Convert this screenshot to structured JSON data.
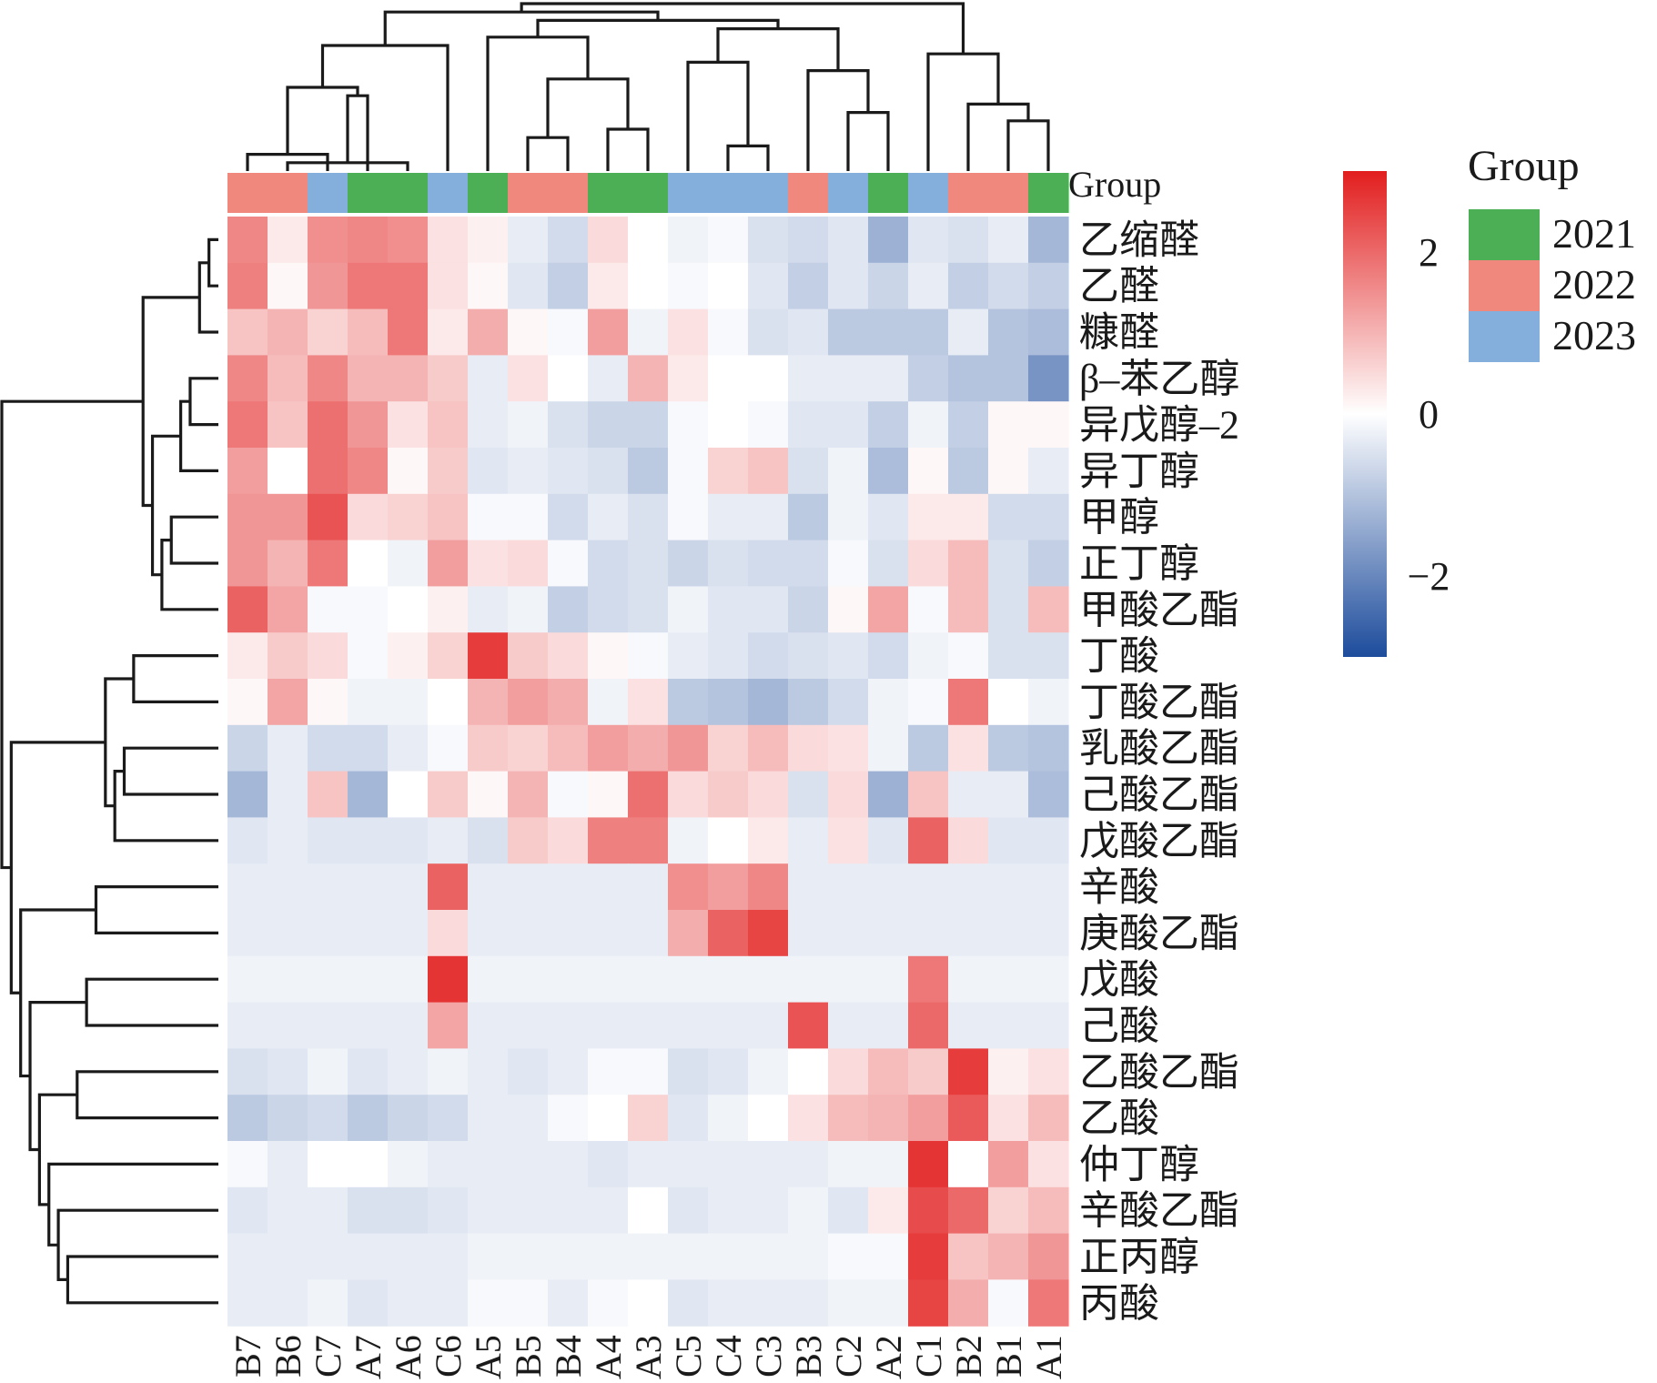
{
  "chart_data": {
    "type": "heatmap",
    "title": "",
    "xlabel": "",
    "ylabel": "",
    "columns": [
      "B7",
      "B6",
      "C7",
      "A7",
      "A6",
      "C6",
      "A5",
      "B5",
      "B4",
      "A4",
      "A3",
      "C5",
      "C4",
      "C3",
      "B3",
      "C2",
      "A2",
      "C1",
      "B2",
      "B1",
      "A1"
    ],
    "column_groups": [
      "2022",
      "2022",
      "2023",
      "2021",
      "2021",
      "2023",
      "2021",
      "2022",
      "2022",
      "2021",
      "2021",
      "2023",
      "2023",
      "2023",
      "2022",
      "2023",
      "2021",
      "2023",
      "2022",
      "2022",
      "2021"
    ],
    "group_annotation_label": "Group",
    "rows": [
      "乙缩醛",
      "乙醛",
      "糠醛",
      "β–苯乙醇",
      "异戊醇–2",
      "异丁醇",
      "甲醇",
      "正丁醇",
      "甲酸乙酯",
      "丁酸",
      "丁酸乙酯",
      "乳酸乙酯",
      "己酸乙酯",
      "戊酸乙酯",
      "辛酸",
      "庚酸乙酯",
      "戊酸",
      "己酸",
      "乙酸乙酯",
      "乙酸",
      "仲丁醇",
      "辛酸乙酯",
      "正丙醇",
      "丙酸"
    ],
    "values": [
      [
        1.6,
        0.3,
        1.5,
        1.6,
        1.5,
        0.4,
        0.2,
        -0.3,
        -0.6,
        0.5,
        0.0,
        -0.2,
        -0.1,
        -0.5,
        -0.6,
        -0.4,
        -1.3,
        -0.4,
        -0.5,
        -0.3,
        -1.2
      ],
      [
        1.7,
        0.1,
        1.4,
        1.8,
        1.8,
        0.4,
        0.1,
        -0.4,
        -0.8,
        0.3,
        0.0,
        -0.1,
        0.0,
        -0.4,
        -0.8,
        -0.4,
        -0.7,
        -0.3,
        -0.8,
        -0.6,
        -0.8
      ],
      [
        0.8,
        1.0,
        0.6,
        0.9,
        1.8,
        0.3,
        1.1,
        0.1,
        -0.1,
        1.3,
        -0.2,
        0.4,
        -0.1,
        -0.5,
        -0.4,
        -0.9,
        -0.9,
        -0.9,
        -0.3,
        -1.0,
        -1.1
      ],
      [
        1.6,
        0.9,
        1.6,
        1.0,
        1.0,
        0.7,
        -0.3,
        0.4,
        0.0,
        -0.3,
        1.0,
        0.3,
        0.0,
        0.0,
        -0.3,
        -0.3,
        -0.3,
        -0.8,
        -1.0,
        -1.0,
        -1.8
      ],
      [
        1.8,
        0.8,
        1.9,
        1.4,
        0.4,
        0.8,
        -0.3,
        -0.2,
        -0.5,
        -0.7,
        -0.7,
        -0.1,
        0.0,
        -0.1,
        -0.4,
        -0.4,
        -0.8,
        -0.2,
        -0.8,
        0.1,
        0.1
      ],
      [
        1.3,
        0.0,
        1.9,
        1.6,
        0.1,
        0.7,
        -0.4,
        -0.3,
        -0.4,
        -0.5,
        -0.9,
        -0.1,
        0.6,
        0.8,
        -0.5,
        -0.2,
        -1.1,
        0.1,
        -0.9,
        0.1,
        -0.3
      ],
      [
        1.4,
        1.4,
        2.3,
        0.5,
        0.6,
        0.8,
        -0.1,
        -0.1,
        -0.6,
        -0.3,
        -0.5,
        -0.1,
        -0.3,
        -0.3,
        -0.9,
        -0.2,
        -0.4,
        0.3,
        0.3,
        -0.6,
        -0.6
      ],
      [
        1.4,
        1.0,
        1.8,
        0.0,
        -0.2,
        1.3,
        0.4,
        0.5,
        -0.1,
        -0.6,
        -0.5,
        -0.7,
        -0.5,
        -0.6,
        -0.6,
        -0.1,
        -0.5,
        0.5,
        0.9,
        -0.5,
        -0.8
      ],
      [
        2.1,
        1.2,
        -0.1,
        -0.1,
        0.0,
        0.2,
        -0.3,
        -0.2,
        -0.8,
        -0.6,
        -0.5,
        -0.2,
        -0.4,
        -0.4,
        -0.7,
        0.1,
        1.2,
        -0.1,
        0.9,
        -0.5,
        0.9
      ],
      [
        0.3,
        0.7,
        0.5,
        -0.1,
        0.2,
        0.6,
        2.6,
        0.7,
        0.5,
        0.1,
        -0.1,
        -0.3,
        -0.4,
        -0.6,
        -0.5,
        -0.4,
        -0.6,
        -0.2,
        -0.1,
        -0.5,
        -0.5
      ],
      [
        0.1,
        1.2,
        0.1,
        -0.2,
        -0.2,
        0.0,
        1.0,
        1.3,
        1.1,
        -0.2,
        0.4,
        -0.9,
        -1.0,
        -1.2,
        -0.9,
        -0.6,
        -0.2,
        -0.1,
        1.8,
        0.0,
        -0.2
      ],
      [
        -0.7,
        -0.3,
        -0.6,
        -0.6,
        -0.3,
        -0.1,
        0.7,
        0.6,
        0.9,
        1.3,
        1.1,
        1.4,
        0.6,
        0.9,
        0.5,
        0.4,
        -0.2,
        -0.9,
        0.4,
        -0.9,
        -1.0
      ],
      [
        -1.2,
        -0.3,
        0.8,
        -1.2,
        0.0,
        0.7,
        0.1,
        1.0,
        -0.1,
        0.1,
        1.9,
        0.5,
        0.7,
        0.5,
        -0.5,
        0.5,
        -1.3,
        0.8,
        -0.3,
        -0.3,
        -1.1
      ],
      [
        -0.4,
        -0.3,
        -0.4,
        -0.4,
        -0.4,
        -0.3,
        -0.5,
        0.7,
        0.5,
        1.7,
        1.7,
        -0.2,
        0.0,
        0.3,
        -0.3,
        0.4,
        -0.4,
        2.1,
        0.5,
        -0.4,
        -0.4
      ],
      [
        -0.3,
        -0.3,
        -0.3,
        -0.3,
        -0.3,
        2.1,
        -0.3,
        -0.3,
        -0.3,
        -0.3,
        -0.3,
        1.5,
        1.3,
        1.6,
        -0.3,
        -0.3,
        -0.3,
        -0.3,
        -0.3,
        -0.3,
        -0.3
      ],
      [
        -0.3,
        -0.3,
        -0.3,
        -0.3,
        -0.3,
        0.5,
        -0.3,
        -0.3,
        -0.3,
        -0.3,
        -0.3,
        1.1,
        2.1,
        2.5,
        -0.3,
        -0.3,
        -0.3,
        -0.3,
        -0.3,
        -0.3,
        -0.3
      ],
      [
        -0.2,
        -0.2,
        -0.2,
        -0.2,
        -0.2,
        2.7,
        -0.2,
        -0.2,
        -0.2,
        -0.2,
        -0.2,
        -0.2,
        -0.2,
        -0.2,
        -0.2,
        -0.2,
        -0.2,
        1.8,
        -0.2,
        -0.2,
        -0.2
      ],
      [
        -0.3,
        -0.3,
        -0.3,
        -0.3,
        -0.3,
        1.2,
        -0.3,
        -0.3,
        -0.3,
        -0.3,
        -0.3,
        -0.3,
        -0.3,
        -0.3,
        2.3,
        -0.3,
        -0.3,
        2.0,
        -0.3,
        -0.3,
        -0.3
      ],
      [
        -0.5,
        -0.4,
        -0.2,
        -0.4,
        -0.3,
        -0.2,
        -0.3,
        -0.4,
        -0.3,
        -0.1,
        -0.1,
        -0.5,
        -0.4,
        -0.2,
        0.0,
        0.5,
        0.9,
        0.7,
        2.6,
        0.2,
        0.4
      ],
      [
        -0.9,
        -0.7,
        -0.6,
        -0.9,
        -0.7,
        -0.6,
        -0.3,
        -0.3,
        -0.1,
        0.0,
        0.6,
        -0.4,
        -0.2,
        0.0,
        0.4,
        0.9,
        1.0,
        1.3,
        2.2,
        0.4,
        0.9
      ],
      [
        -0.1,
        -0.3,
        0.0,
        0.0,
        -0.2,
        -0.3,
        -0.3,
        -0.3,
        -0.3,
        -0.4,
        -0.3,
        -0.3,
        -0.3,
        -0.3,
        -0.3,
        -0.2,
        -0.2,
        2.7,
        0.0,
        1.3,
        0.4
      ],
      [
        -0.4,
        -0.3,
        -0.3,
        -0.5,
        -0.5,
        -0.4,
        -0.3,
        -0.3,
        -0.3,
        -0.3,
        0.0,
        -0.4,
        -0.3,
        -0.3,
        -0.2,
        -0.4,
        0.3,
        2.4,
        2.0,
        0.6,
        0.9
      ],
      [
        -0.3,
        -0.3,
        -0.3,
        -0.3,
        -0.3,
        -0.3,
        -0.2,
        -0.2,
        -0.2,
        -0.2,
        -0.2,
        -0.2,
        -0.2,
        -0.2,
        -0.2,
        -0.1,
        -0.1,
        2.6,
        0.8,
        1.0,
        1.4
      ],
      [
        -0.3,
        -0.3,
        -0.2,
        -0.4,
        -0.3,
        -0.3,
        -0.1,
        -0.1,
        -0.3,
        -0.1,
        0.0,
        -0.4,
        -0.3,
        -0.3,
        -0.3,
        -0.2,
        -0.2,
        2.5,
        1.1,
        -0.1,
        1.8
      ]
    ],
    "color_scale": {
      "min": -3,
      "max": 3,
      "low_color": "#1d4c9c",
      "mid_color": "#ffffff",
      "high_color": "#e21e1e",
      "tick_values": [
        2,
        0,
        -2
      ],
      "tick_labels": [
        "2",
        "0",
        "−2"
      ]
    },
    "legend": {
      "title": "Group",
      "entries": [
        {
          "label": "2021",
          "color": "#4cae55"
        },
        {
          "label": "2022",
          "color": "#f0887e"
        },
        {
          "label": "2023",
          "color": "#84aedc"
        }
      ],
      "placement": "right"
    },
    "col_dendrogram": [
      [
        "B6",
        "A6"
      ],
      [
        "C7",
        "B7"
      ],
      [
        "C4",
        "C3"
      ],
      [
        "B5",
        "B4"
      ],
      [
        "A4",
        "A3"
      ],
      [
        "B1",
        "A1"
      ],
      [
        "C2",
        "A2"
      ],
      [
        "B2",
        "B1"
      ],
      [
        "A7",
        "A6"
      ],
      [
        "B7",
        "A6"
      ],
      [
        "B5",
        "A3"
      ],
      [
        "B3",
        "C2"
      ],
      [
        "C5",
        "C3"
      ],
      [
        "C1",
        "B2"
      ],
      [
        "B7",
        "C6"
      ],
      [
        "A5",
        "B5"
      ],
      [
        "C5",
        "B3"
      ],
      [
        "A5",
        "C5"
      ],
      [
        "B7",
        "A5"
      ],
      [
        "B7",
        "C1"
      ]
    ],
    "row_dendrogram": [
      [
        "乙缩醛",
        "乙醛"
      ],
      [
        "乙缩醛",
        "糠醛"
      ],
      [
        "β–苯乙醇",
        "异戊醇–2"
      ],
      [
        "β–苯乙醇",
        "异丁醇"
      ],
      [
        "甲醇",
        "正丁醇"
      ],
      [
        "甲醇",
        "甲酸乙酯"
      ],
      [
        "β–苯乙醇",
        "甲醇"
      ],
      [
        "乙缩醛",
        "β–苯乙醇"
      ],
      [
        "丁酸",
        "丁酸乙酯"
      ],
      [
        "乳酸乙酯",
        "己酸乙酯"
      ],
      [
        "乳酸乙酯",
        "戊酸乙酯"
      ],
      [
        "丁酸",
        "乳酸乙酯"
      ],
      [
        "辛酸",
        "庚酸乙酯"
      ],
      [
        "戊酸",
        "己酸"
      ],
      [
        "乙酸乙酯",
        "乙酸"
      ],
      [
        "正丙醇",
        "丙酸"
      ],
      [
        "辛酸乙酯",
        "正丙醇"
      ],
      [
        "仲丁醇",
        "辛酸乙酯"
      ],
      [
        "乙酸乙酯",
        "仲丁醇"
      ],
      [
        "戊酸",
        "乙酸乙酯"
      ],
      [
        "辛酸",
        "戊酸"
      ],
      [
        "丁酸",
        "辛酸"
      ],
      [
        "乙缩醛",
        "丁酸"
      ]
    ]
  }
}
